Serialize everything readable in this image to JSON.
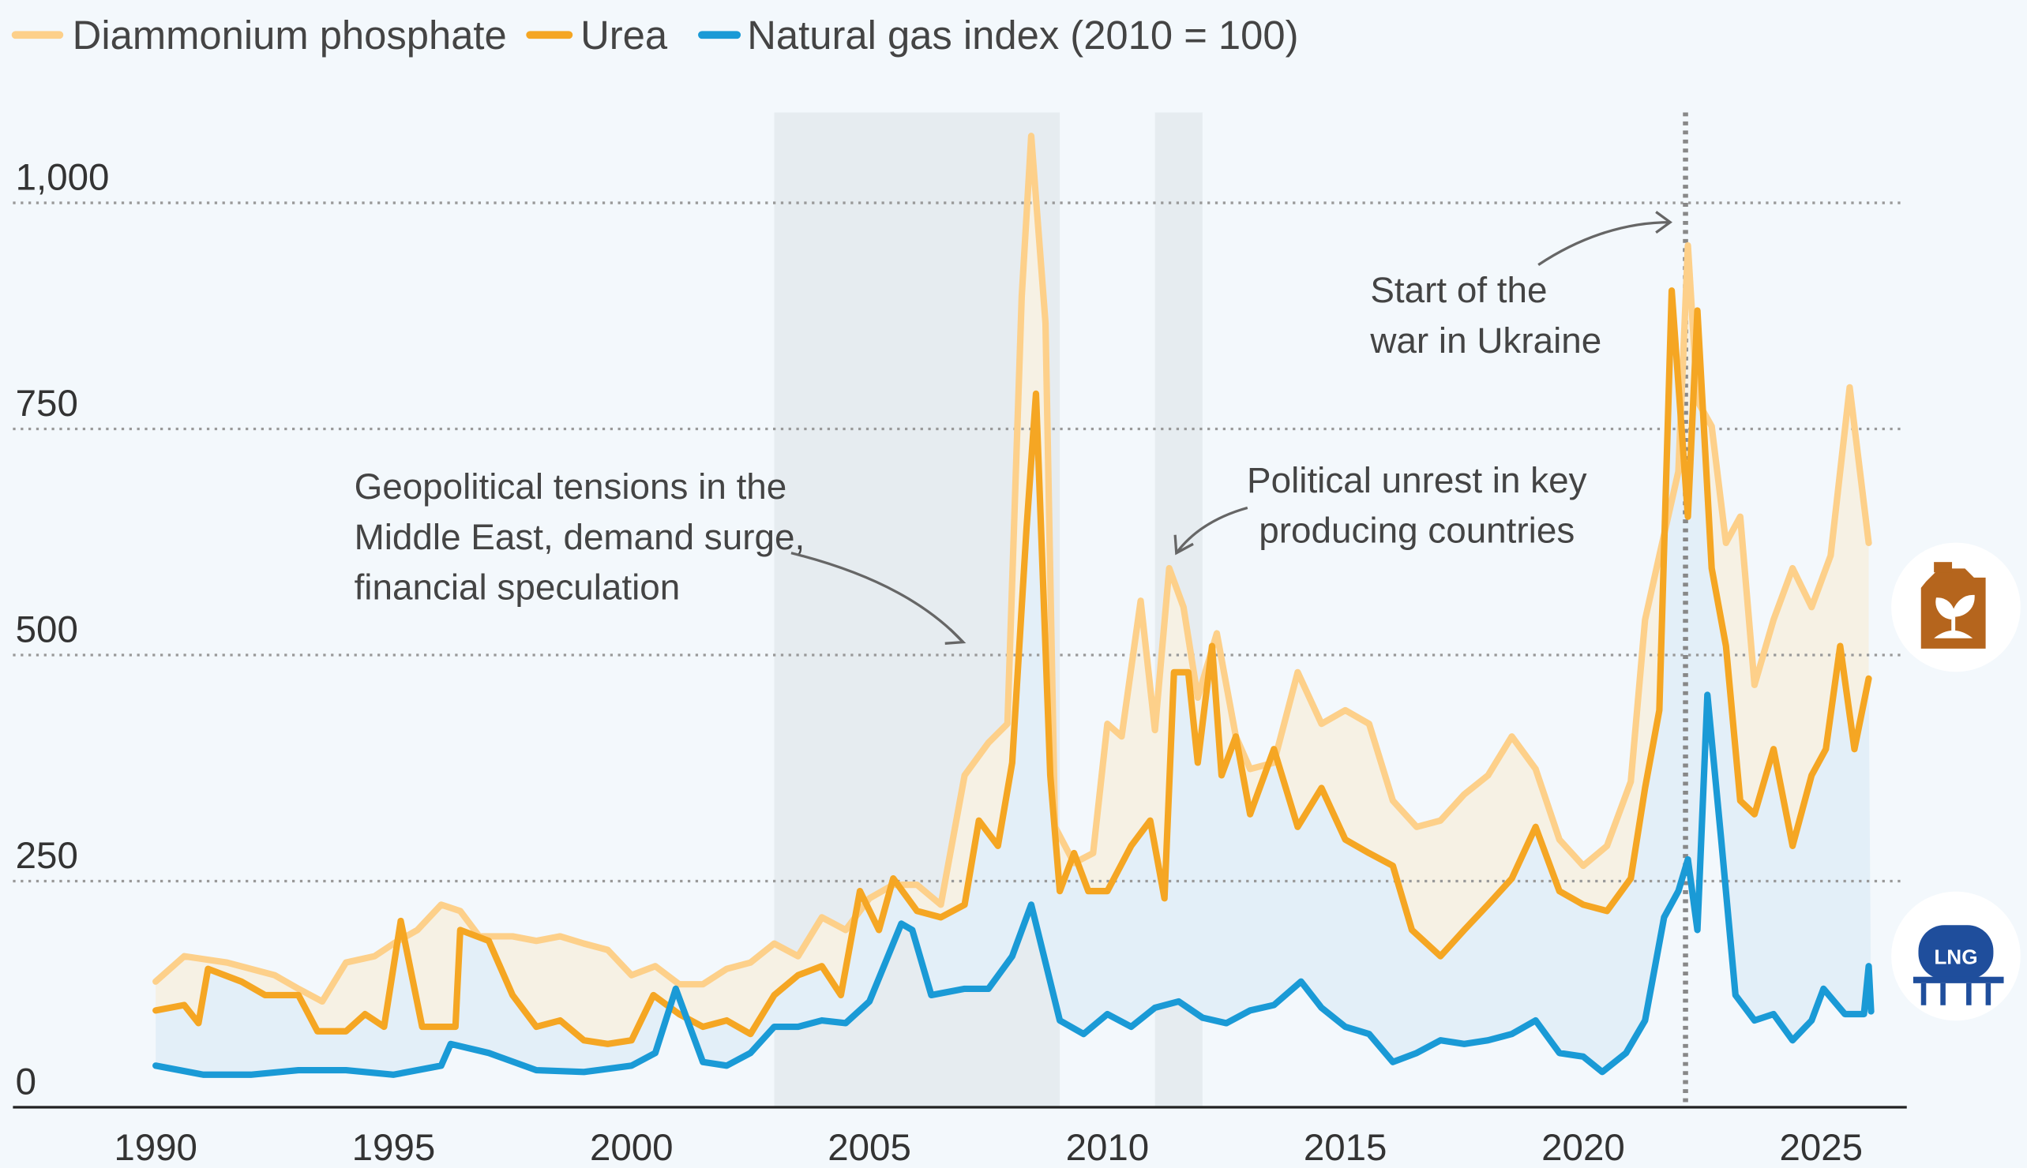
{
  "chart_data": {
    "type": "line",
    "xlim": [
      1987,
      2026.8
    ],
    "ylim": [
      0,
      1100
    ],
    "xticks": [
      1990,
      1995,
      2000,
      2005,
      2010,
      2015,
      2020,
      2025
    ],
    "yticks": [
      0,
      250,
      500,
      750,
      {
        "value": 1000,
        "label": "1,000"
      }
    ],
    "grid": true,
    "shaded_periods": [
      [
        2003,
        2009
      ],
      [
        2011,
        2012
      ]
    ],
    "event_x": 2022.15,
    "icon_label": "LNG",
    "annotations": [
      {
        "lines": [
          "Geopolitical tensions in the",
          "Middle East, demand surge,",
          "financial speculation"
        ]
      },
      {
        "lines": [
          "Political unrest in key",
          "producing countries"
        ]
      },
      {
        "lines": [
          "Start of the",
          "war in Ukraine"
        ]
      }
    ],
    "series": [
      {
        "name": "Diammonium phosphate",
        "color": "#fdd08a",
        "x": [
          1990,
          1990.6,
          1991.5,
          1992,
          1992.5,
          1993,
          1993.5,
          1994,
          1994.6,
          1995,
          1995.5,
          1996,
          1996.4,
          1996.8,
          1997.5,
          1998,
          1998.5,
          1999,
          1999.5,
          2000,
          2000.5,
          2001,
          2001.5,
          2002,
          2002.5,
          2003,
          2003.5,
          2004,
          2004.5,
          2005,
          2005.5,
          2006,
          2006.5,
          2007,
          2007.5,
          2007.9,
          2008.2,
          2008.4,
          2008.7,
          2008.9,
          2009.3,
          2009.7,
          2010,
          2010.3,
          2010.7,
          2011,
          2011.3,
          2011.6,
          2011.9,
          2012.3,
          2012.7,
          2013,
          2013.5,
          2014,
          2014.5,
          2015,
          2015.5,
          2016,
          2016.5,
          2017,
          2017.5,
          2018,
          2018.5,
          2019,
          2019.5,
          2020,
          2020.5,
          2021,
          2021.3,
          2021.6,
          2022,
          2022.2,
          2022.4,
          2022.7,
          2023,
          2023.3,
          2023.6,
          2024,
          2024.4,
          2024.8,
          2025.2,
          2025.6,
          2025.8,
          2026
        ],
        "values": [
          139,
          167,
          160,
          153,
          146,
          131,
          117,
          160,
          167,
          181,
          196,
          224,
          217,
          189,
          189,
          184,
          189,
          181,
          174,
          146,
          156,
          136,
          136,
          153,
          160,
          181,
          167,
          210,
          196,
          231,
          246,
          246,
          224,
          367,
          403,
          424,
          896,
          1074,
          867,
          310,
          270,
          281,
          424,
          410,
          560,
          417,
          596,
          553,
          453,
          524,
          410,
          374,
          381,
          481,
          424,
          439,
          424,
          339,
          310,
          317,
          346,
          367,
          410,
          374,
          296,
          267,
          289,
          360,
          539,
          610,
          703,
          953,
          781,
          753,
          624,
          653,
          467,
          539,
          596,
          553,
          610,
          796,
          710,
          624
        ]
      },
      {
        "name": "Urea",
        "color": "#f5a623",
        "x": [
          1990,
          1990.6,
          1990.9,
          1991.1,
          1991.8,
          1992.3,
          1993,
          1993.4,
          1994,
          1994.4,
          1994.8,
          1995.15,
          1995.6,
          1996.3,
          1996.4,
          1997,
          1997.5,
          1998,
          1998.5,
          1999,
          1999.5,
          2000,
          2000.46,
          2001,
          2001.5,
          2002,
          2002.5,
          2003,
          2003.5,
          2004,
          2004.4,
          2004.8,
          2005.2,
          2005.5,
          2006,
          2006.5,
          2007,
          2007.3,
          2007.7,
          2008,
          2008.3,
          2008.5,
          2008.8,
          2009,
          2009.3,
          2009.6,
          2010,
          2010.5,
          2010.9,
          2011.2,
          2011.4,
          2011.7,
          2011.9,
          2012.2,
          2012.4,
          2012.7,
          2013,
          2013.5,
          2014,
          2014.5,
          2015,
          2015.5,
          2016,
          2016.4,
          2017,
          2017.5,
          2018,
          2018.5,
          2019,
          2019.5,
          2020,
          2020.5,
          2021,
          2021.3,
          2021.6,
          2021.86,
          2022.2,
          2022.4,
          2022.7,
          2023,
          2023.3,
          2023.6,
          2024,
          2024.4,
          2024.8,
          2025.1,
          2025.4,
          2025.7,
          2026
        ],
        "values": [
          107,
          113,
          93,
          153,
          139,
          124,
          124,
          84,
          84,
          103,
          89,
          206,
          89,
          89,
          196,
          184,
          124,
          89,
          96,
          74,
          70,
          74,
          124,
          103,
          89,
          96,
          81,
          124,
          146,
          156,
          124,
          239,
          196,
          253,
          217,
          210,
          224,
          317,
          289,
          381,
          639,
          789,
          367,
          239,
          281,
          239,
          239,
          289,
          317,
          231,
          481,
          481,
          381,
          510,
          367,
          410,
          324,
          396,
          310,
          353,
          296,
          281,
          267,
          196,
          167,
          196,
          224,
          253,
          310,
          239,
          224,
          217,
          253,
          353,
          439,
          903,
          653,
          881,
          596,
          510,
          339,
          324,
          396,
          289,
          367,
          396,
          510,
          396,
          474
        ]
      },
      {
        "name": "Natural gas index (2010 = 100)",
        "color": "#1a9ad6",
        "x": [
          1990,
          1991,
          1992,
          1993,
          1994,
          1995,
          1996,
          1996.2,
          1997,
          1998,
          1999,
          2000,
          2000.5,
          2000.93,
          2001.5,
          2002,
          2002.5,
          2003,
          2003.5,
          2004,
          2004.5,
          2005,
          2005.67,
          2005.9,
          2006.3,
          2007,
          2007.5,
          2008,
          2008.4,
          2009,
          2009.5,
          2010,
          2010.5,
          2011,
          2011.5,
          2012,
          2012.5,
          2013,
          2013.5,
          2014.07,
          2014.5,
          2015,
          2015.5,
          2016,
          2016.5,
          2017,
          2017.5,
          2018,
          2018.5,
          2019,
          2019.5,
          2020,
          2020.4,
          2020.9,
          2021.3,
          2021.7,
          2022,
          2022.2,
          2022.4,
          2022.61,
          2022.9,
          2023.2,
          2023.6,
          2024,
          2024.4,
          2024.8,
          2025.05,
          2025.5,
          2025.9,
          2026,
          2026.05
        ],
        "values": [
          46,
          36,
          36,
          41,
          41,
          36,
          46,
          70,
          60,
          41,
          39,
          46,
          60,
          131,
          50,
          46,
          60,
          89,
          89,
          96,
          93,
          117,
          203,
          196,
          124,
          131,
          131,
          167,
          224,
          96,
          81,
          103,
          89,
          110,
          117,
          99,
          93,
          107,
          113,
          139,
          110,
          89,
          81,
          50,
          60,
          74,
          70,
          74,
          81,
          96,
          60,
          56,
          39,
          60,
          96,
          210,
          239,
          274,
          196,
          456,
          296,
          124,
          96,
          103,
          74,
          96,
          131,
          103,
          103,
          156,
          106
        ]
      }
    ]
  }
}
